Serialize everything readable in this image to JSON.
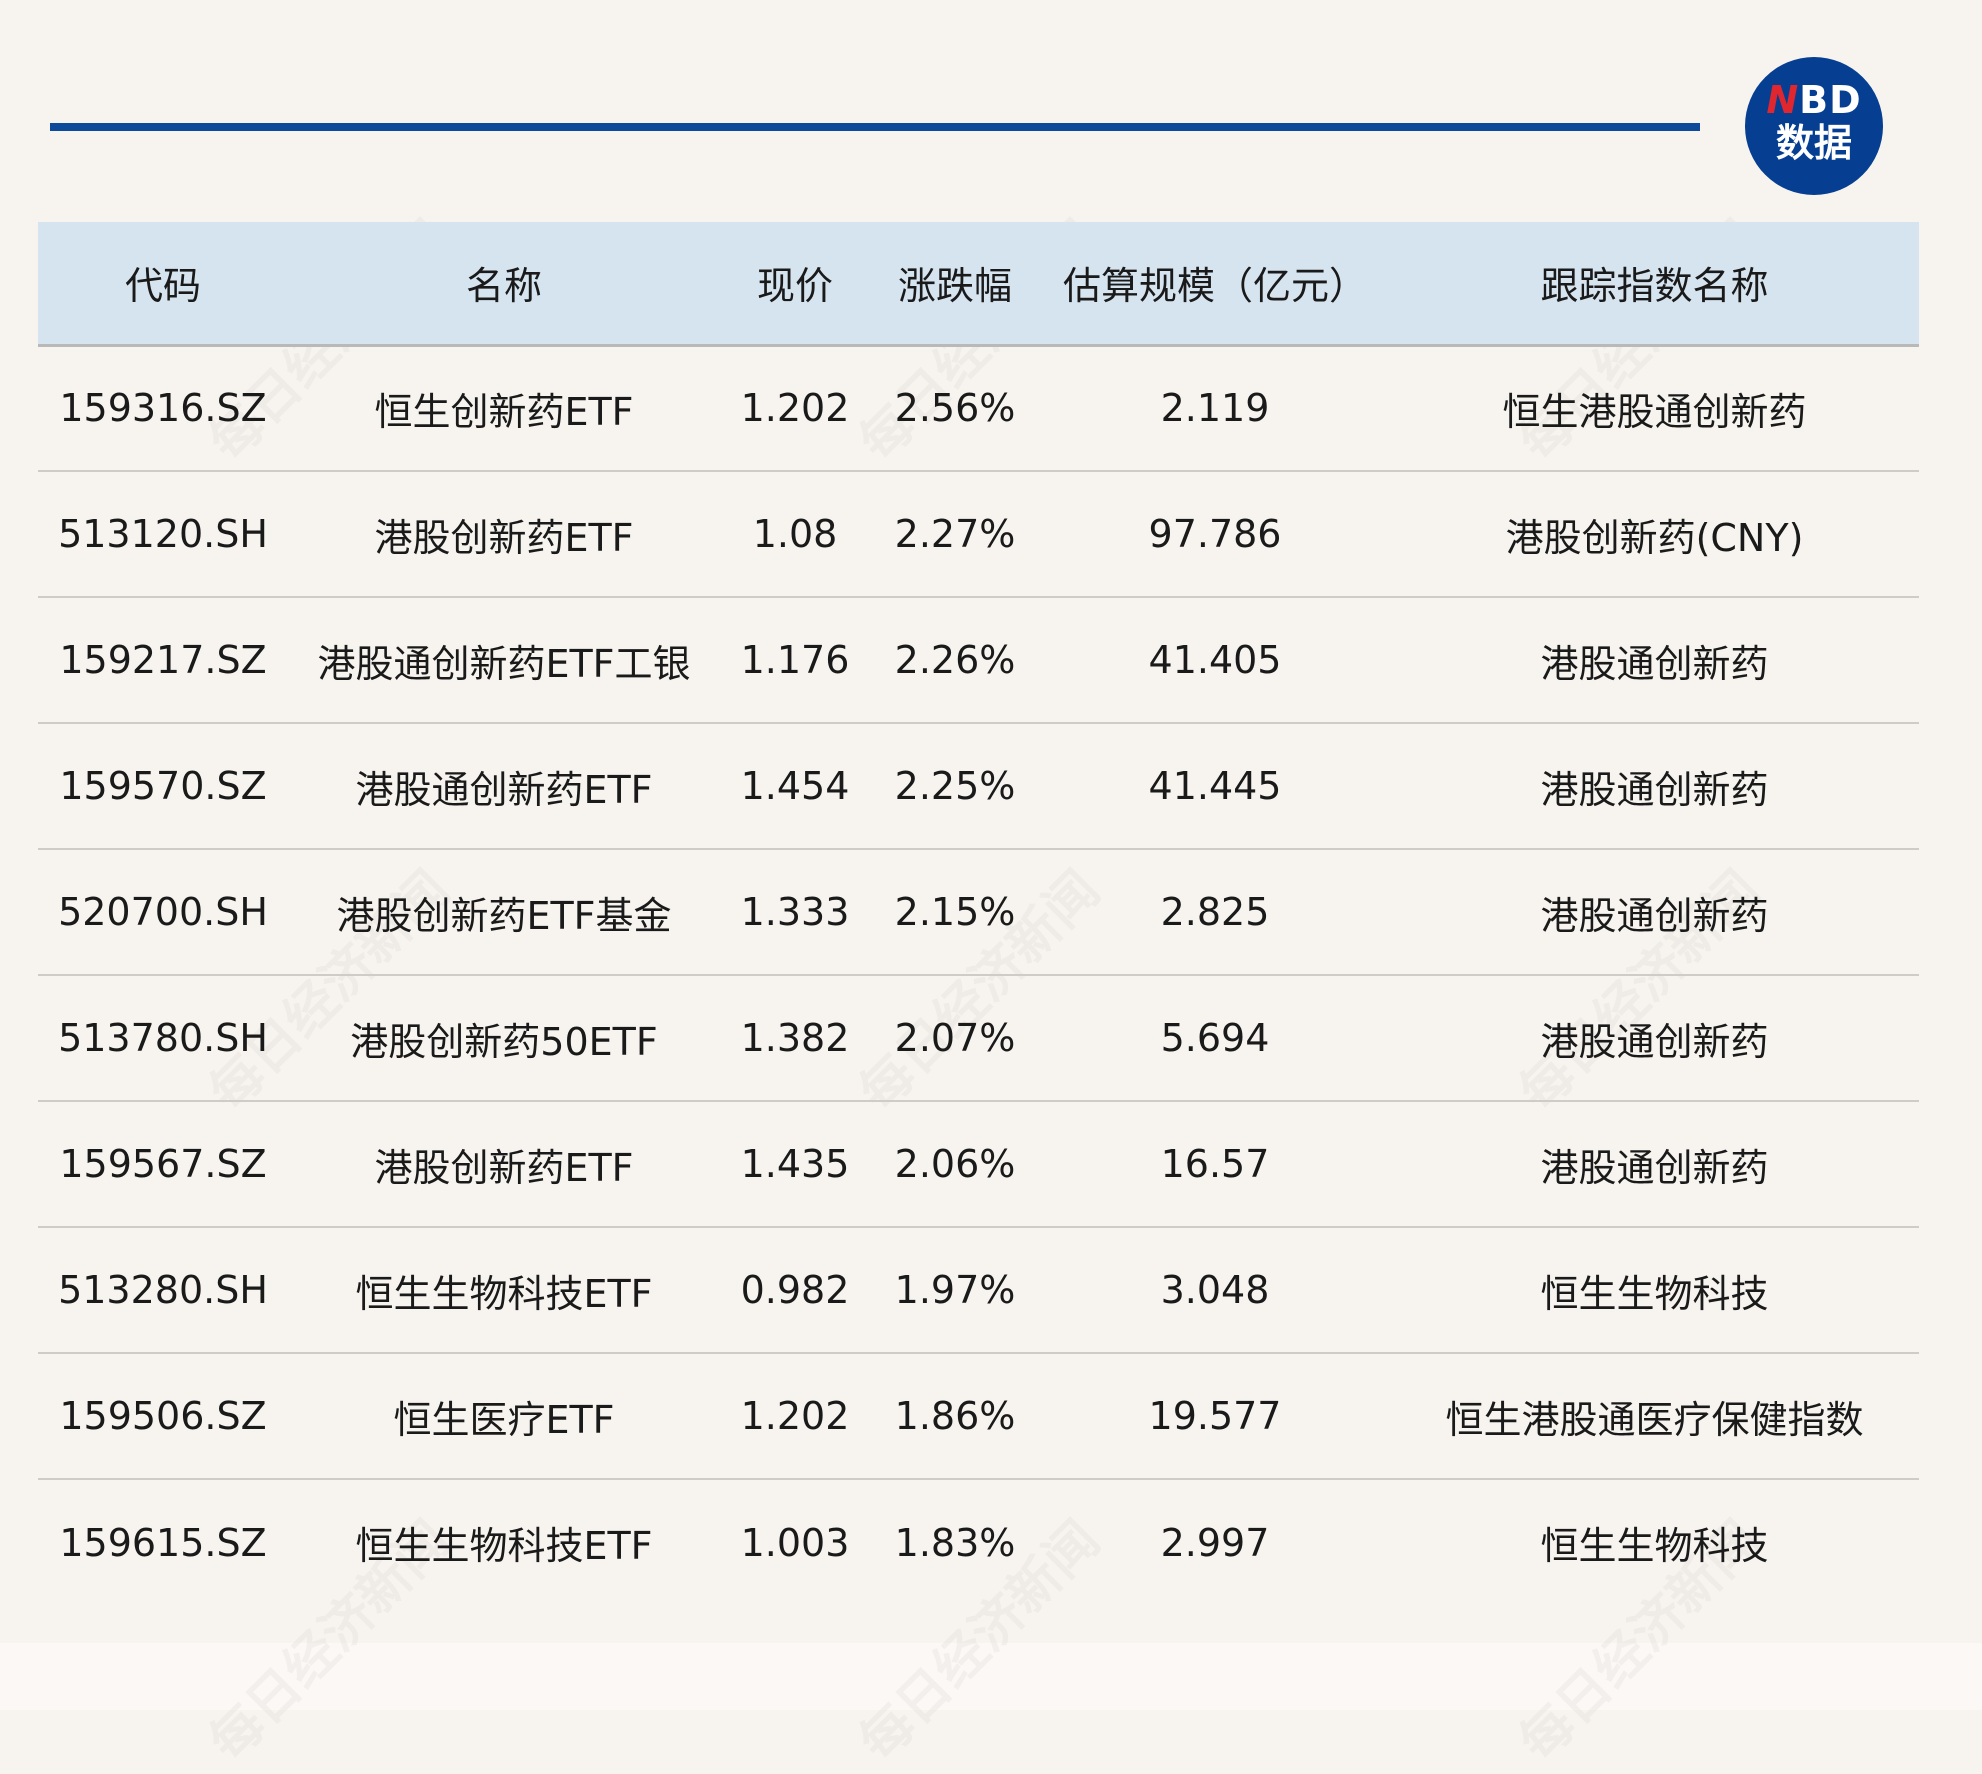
{
  "logo": {
    "n": "N",
    "bd": "BD",
    "sub": "数据"
  },
  "watermark": "每日经济新闻",
  "colors": {
    "accent": "#0d4a9a",
    "header_bg": "#d6e4f0",
    "logo_red": "#e0262f"
  },
  "table": {
    "headers": [
      "代码",
      "名称",
      "现价",
      "涨跌幅",
      "估算规模（亿元）",
      "跟踪指数名称"
    ],
    "rows": [
      [
        "159316.SZ",
        "恒生创新药ETF",
        "1.202",
        "2.56%",
        "2.119",
        "恒生港股通创新药"
      ],
      [
        "513120.SH",
        "港股创新药ETF",
        "1.08",
        "2.27%",
        "97.786",
        "港股创新药(CNY)"
      ],
      [
        "159217.SZ",
        "港股通创新药ETF工银",
        "1.176",
        "2.26%",
        "41.405",
        "港股通创新药"
      ],
      [
        "159570.SZ",
        "港股通创新药ETF",
        "1.454",
        "2.25%",
        "41.445",
        "港股通创新药"
      ],
      [
        "520700.SH",
        "港股创新药ETF基金",
        "1.333",
        "2.15%",
        "2.825",
        "港股通创新药"
      ],
      [
        "513780.SH",
        "港股创新药50ETF",
        "1.382",
        "2.07%",
        "5.694",
        "港股通创新药"
      ],
      [
        "159567.SZ",
        "港股创新药ETF",
        "1.435",
        "2.06%",
        "16.57",
        "港股通创新药"
      ],
      [
        "513280.SH",
        "恒生生物科技ETF",
        "0.982",
        "1.97%",
        "3.048",
        "恒生生物科技"
      ],
      [
        "159506.SZ",
        "恒生医疗ETF",
        "1.202",
        "1.86%",
        "19.577",
        "恒生港股通医疗保健指数"
      ],
      [
        "159615.SZ",
        "恒生生物科技ETF",
        "1.003",
        "1.83%",
        "2.997",
        "恒生生物科技"
      ]
    ]
  }
}
